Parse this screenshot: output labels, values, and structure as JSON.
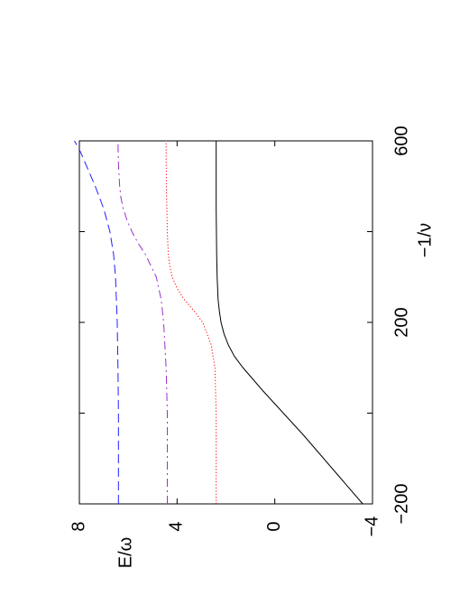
{
  "chart_data": {
    "type": "line",
    "orientation": "rotated-90-ccw",
    "xlabel": "−1/ν",
    "ylabel": "E/ω",
    "xlim": [
      -200,
      600
    ],
    "ylim": [
      -4,
      8
    ],
    "xticks": [
      -200,
      0,
      200,
      400,
      600
    ],
    "xtick_labels": [
      "−200",
      "",
      "200",
      "",
      "600"
    ],
    "yticks": [
      -4,
      0,
      4,
      8
    ],
    "ytick_labels": [
      "−4",
      "0",
      "4",
      "8"
    ],
    "grid": false,
    "legend": "none",
    "series": [
      {
        "style": "solid",
        "color": "#000000",
        "x": [
          -200,
          -150,
          -100,
          -50,
          0,
          50,
          100,
          125,
          150,
          175,
          200,
          225,
          250,
          300,
          350,
          400,
          450,
          500,
          600
        ],
        "y": [
          -3.6,
          -2.8,
          -2.0,
          -1.2,
          -0.35,
          0.5,
          1.3,
          1.65,
          1.9,
          2.08,
          2.2,
          2.27,
          2.32,
          2.36,
          2.38,
          2.39,
          2.4,
          2.4,
          2.4
        ]
      },
      {
        "style": "dotted",
        "color": "#ff0000",
        "x": [
          -200,
          -100,
          0,
          100,
          150,
          200,
          225,
          250,
          275,
          300,
          325,
          350,
          400,
          450,
          500,
          600
        ],
        "y": [
          2.4,
          2.4,
          2.4,
          2.45,
          2.6,
          2.95,
          3.3,
          3.7,
          4.0,
          4.2,
          4.3,
          4.36,
          4.4,
          4.42,
          4.44,
          4.45
        ]
      },
      {
        "style": "dash-dot",
        "color": "#9b30d0",
        "x": [
          -200,
          -100,
          0,
          100,
          200,
          250,
          300,
          350,
          375,
          400,
          425,
          450,
          475,
          500,
          550,
          600
        ],
        "y": [
          4.4,
          4.4,
          4.4,
          4.45,
          4.55,
          4.65,
          4.85,
          5.3,
          5.6,
          5.85,
          6.05,
          6.2,
          6.3,
          6.35,
          6.4,
          6.42
        ]
      },
      {
        "style": "dashed",
        "color": "#2020ff",
        "x": [
          -200,
          -100,
          0,
          100,
          200,
          300,
          350,
          400,
          450,
          500,
          525,
          550,
          575,
          600
        ],
        "y": [
          6.4,
          6.4,
          6.4,
          6.42,
          6.45,
          6.52,
          6.6,
          6.75,
          7.0,
          7.35,
          7.55,
          7.75,
          7.95,
          8.2
        ]
      }
    ]
  }
}
